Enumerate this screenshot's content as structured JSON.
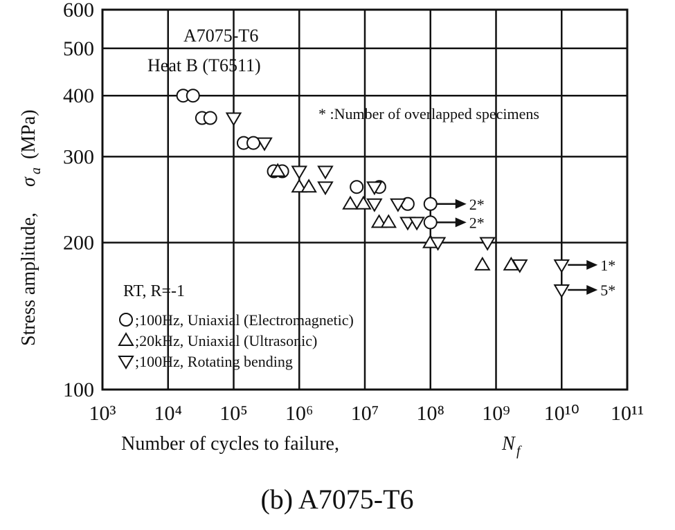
{
  "chart_data": {
    "type": "scatter",
    "xscale": "log",
    "yscale": "log",
    "grid": true,
    "xlim": [
      1000,
      100000000000
    ],
    "ylim": [
      100,
      600
    ],
    "xticks": [
      {
        "value": 1000,
        "label": "10³"
      },
      {
        "value": 10000,
        "label": "10⁴"
      },
      {
        "value": 100000,
        "label": "10⁵"
      },
      {
        "value": 1000000,
        "label": "10⁶"
      },
      {
        "value": 10000000,
        "label": "10⁷"
      },
      {
        "value": 100000000,
        "label": "10⁸"
      },
      {
        "value": 1000000000,
        "label": "10⁹"
      },
      {
        "value": 10000000000,
        "label": "10¹⁰"
      },
      {
        "value": 100000000000,
        "label": "10¹¹"
      }
    ],
    "yticks": [
      100,
      200,
      300,
      400,
      500,
      600
    ],
    "xlabel": "Number of cycles to failure,",
    "xlabel_symbol": "N",
    "xlabel_symbol_sub": "f",
    "ylabel": "Stress amplitude,",
    "ylabel_symbol": "σ",
    "ylabel_symbol_sub": "a",
    "ylabel_unit": "(MPa)",
    "annotations": [
      "A7075-T6",
      "Heat B (T6511)",
      "* :Number of overlapped specimens",
      "RT, R=-1"
    ],
    "caption": "(b) A7075-T6",
    "series": [
      {
        "name": ";100Hz, Uniaxial (Electromagnetic)",
        "marker": "circle",
        "color": "#111",
        "x": [
          17000,
          24000,
          33000,
          44000,
          142000,
          200000,
          410000,
          550000,
          7500000,
          16600000,
          45000000,
          100000000,
          100000000
        ],
        "values": [
          400,
          400,
          360,
          360,
          320,
          320,
          280,
          280,
          260,
          260,
          240,
          240,
          220
        ],
        "runout_labels": [
          null,
          null,
          null,
          null,
          null,
          null,
          null,
          null,
          null,
          null,
          null,
          "2*",
          "2*"
        ]
      },
      {
        "name": ";20kHz, Uniaxial (Ultrasonic)",
        "marker": "triangle-up",
        "color": "#111",
        "x": [
          470000,
          1000000,
          1400000,
          6000000,
          9500000,
          16500000,
          23000000,
          100000000,
          620000000,
          1700000000
        ],
        "values": [
          280,
          260,
          260,
          240,
          240,
          220,
          220,
          200,
          180,
          180
        ]
      },
      {
        "name": ";100Hz, Rotating bending",
        "marker": "triangle-down",
        "color": "#111",
        "x": [
          100000,
          295000,
          1000000,
          2500000,
          2500000,
          14000000,
          14000000,
          32000000,
          45000000,
          62000000,
          130000000,
          740000000,
          2300000000,
          10000000000,
          10000000000
        ],
        "values": [
          360,
          320,
          280,
          280,
          260,
          260,
          240,
          240,
          220,
          220,
          200,
          200,
          180,
          180,
          160
        ],
        "runout_labels": [
          null,
          null,
          null,
          null,
          null,
          null,
          null,
          null,
          null,
          null,
          null,
          null,
          null,
          "1*",
          "5*"
        ]
      }
    ]
  }
}
